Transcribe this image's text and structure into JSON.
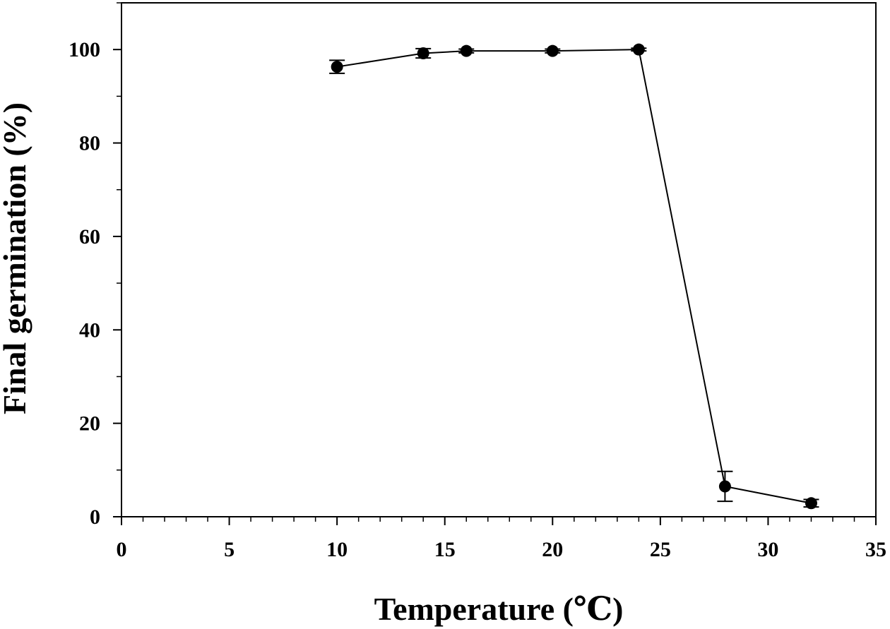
{
  "chart_data": {
    "type": "line",
    "title": "",
    "xlabel": "Temperature (℃)",
    "ylabel": "Final germination (%)",
    "xlim": [
      0,
      35
    ],
    "ylim": [
      0,
      110
    ],
    "x_ticks": [
      0,
      5,
      10,
      15,
      20,
      25,
      30,
      35
    ],
    "y_ticks": [
      0,
      20,
      40,
      60,
      80,
      100
    ],
    "x_minor_step": 1,
    "y_minor_step": 10,
    "grid": false,
    "legend": "none",
    "colors": {
      "line": "#000000",
      "marker": "#000000"
    },
    "series": [
      {
        "x": [
          10,
          14,
          16,
          20,
          24,
          28,
          32
        ],
        "y": [
          96.3,
          99.2,
          99.7,
          99.7,
          100.0,
          6.5,
          2.9
        ],
        "error": [
          1.4,
          1.0,
          0.4,
          0.4,
          0.3,
          3.2,
          0.8
        ]
      }
    ]
  }
}
